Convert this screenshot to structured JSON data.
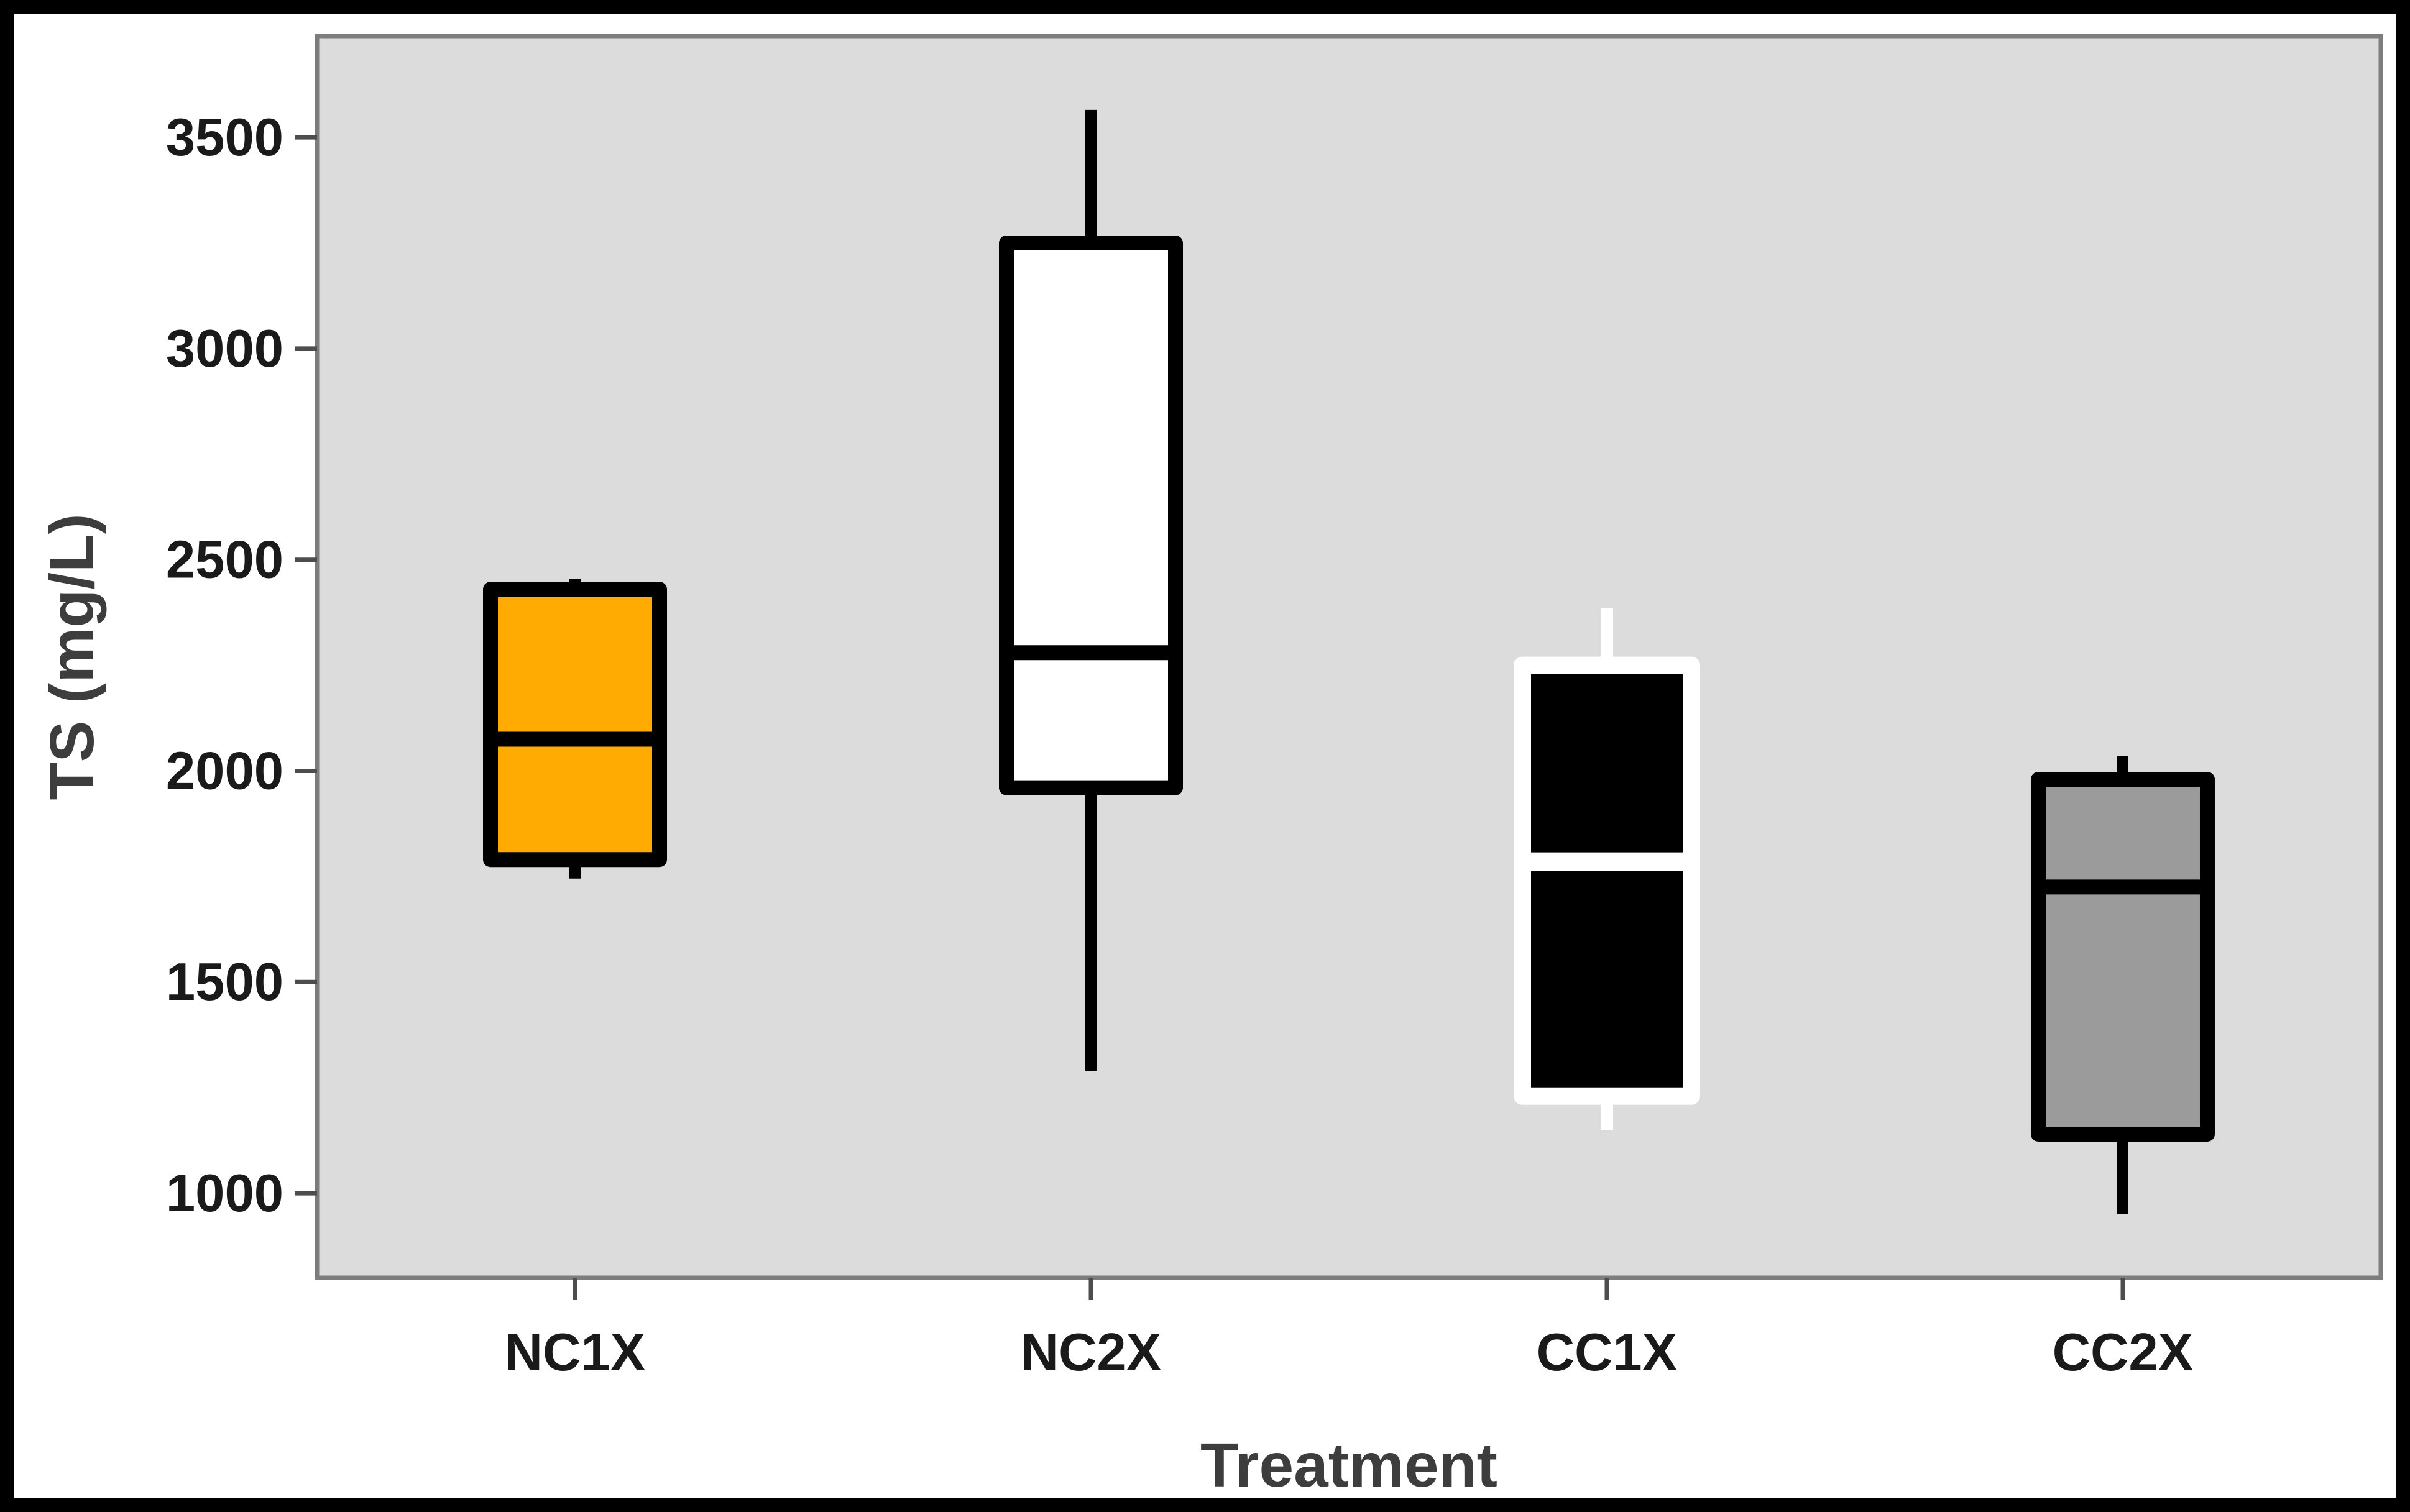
{
  "chart_data": {
    "type": "boxplot",
    "title": "",
    "xlabel": "Treatment",
    "ylabel": "TS (mg/L)",
    "ylim": [
      800,
      3740
    ],
    "y_ticks": [
      1000,
      1500,
      2000,
      2500,
      3000,
      3500
    ],
    "categories": [
      "NC1X",
      "NC2X",
      "CC1X",
      "CC2X"
    ],
    "grid": false,
    "legend": "none",
    "series": [
      {
        "label": "NC1X",
        "fill": "#FFAB02",
        "stroke": "#000000",
        "whisker_low": 1745,
        "q1": 1790,
        "median": 2075,
        "q3": 2430,
        "whisker_high": 2455
      },
      {
        "label": "NC2X",
        "fill": "#FFFFFF",
        "stroke": "#000000",
        "whisker_low": 1290,
        "q1": 1960,
        "median": 2280,
        "q3": 3250,
        "whisker_high": 3565
      },
      {
        "label": "CC1X",
        "fill": "#000000",
        "stroke": "#FFFFFF",
        "whisker_low": 1150,
        "q1": 1230,
        "median": 1785,
        "q3": 2250,
        "whisker_high": 2385
      },
      {
        "label": "CC2X",
        "fill": "#9B9B9B",
        "stroke": "#000000",
        "whisker_low": 950,
        "q1": 1140,
        "median": 1725,
        "q3": 1980,
        "whisker_high": 2035
      }
    ]
  },
  "style": {
    "page_bg": "#FFFFFF",
    "plot_bg": "#DCDCDC",
    "frame_color": "#000000",
    "plot_border_color": "#7D7D7D",
    "tick_color": "#4D4D4D",
    "tick_label_color": "#1A1A1A",
    "axis_title_color": "#3D3D3D"
  }
}
